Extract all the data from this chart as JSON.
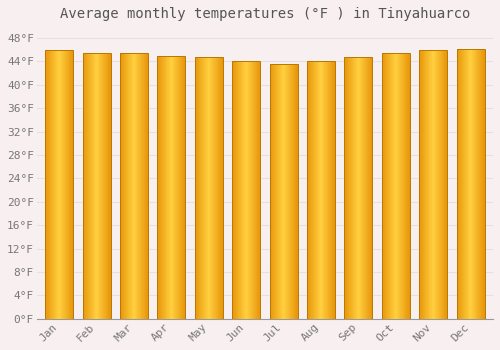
{
  "title": "Average monthly temperatures (°F ) in Tinyahuarco",
  "months": [
    "Jan",
    "Feb",
    "Mar",
    "Apr",
    "May",
    "Jun",
    "Jul",
    "Aug",
    "Sep",
    "Oct",
    "Nov",
    "Dec"
  ],
  "values": [
    46.0,
    45.5,
    45.5,
    45.0,
    44.8,
    44.1,
    43.5,
    44.1,
    44.8,
    45.5,
    46.0,
    46.2
  ],
  "bar_color_left": "#E8960A",
  "bar_color_center": "#FFD040",
  "bar_color_right": "#E8960A",
  "bar_edge_color": "#B87800",
  "background_color": "#F8F0F0",
  "plot_bg_color": "#F8F0F0",
  "grid_color": "#E8E0E0",
  "ytick_labels": [
    "0°F",
    "4°F",
    "8°F",
    "12°F",
    "16°F",
    "20°F",
    "24°F",
    "28°F",
    "32°F",
    "36°F",
    "40°F",
    "44°F",
    "48°F"
  ],
  "ytick_values": [
    0,
    4,
    8,
    12,
    16,
    20,
    24,
    28,
    32,
    36,
    40,
    44,
    48
  ],
  "ylim": [
    0,
    50
  ],
  "title_fontsize": 10,
  "tick_fontsize": 8,
  "font_color": "#777777",
  "title_color": "#555555"
}
